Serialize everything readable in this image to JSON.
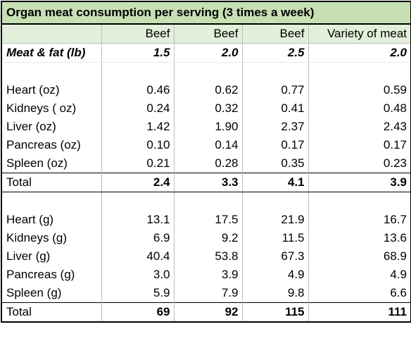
{
  "table": {
    "title": "Organ meat consumption per serving (3 times a week)",
    "columns": [
      "",
      "Beef",
      "Beef",
      "Beef",
      "Variety of meat"
    ],
    "meat_fat": {
      "label": "Meat & fat (lb)",
      "values": [
        "1.5",
        "2.0",
        "2.5",
        "2.0"
      ]
    },
    "oz_rows": [
      {
        "label": "Heart (oz)",
        "values": [
          "0.46",
          "0.62",
          "0.77",
          "0.59"
        ]
      },
      {
        "label": "Kidneys ( oz)",
        "values": [
          "0.24",
          "0.32",
          "0.41",
          "0.48"
        ]
      },
      {
        "label": "Liver (oz)",
        "values": [
          "1.42",
          "1.90",
          "2.37",
          "2.43"
        ]
      },
      {
        "label": "Pancreas (oz)",
        "values": [
          "0.10",
          "0.14",
          "0.17",
          "0.17"
        ]
      },
      {
        "label": "Spleen (oz)",
        "values": [
          "0.21",
          "0.28",
          "0.35",
          "0.23"
        ]
      }
    ],
    "oz_total": {
      "label": "Total",
      "values": [
        "2.4",
        "3.3",
        "4.1",
        "3.9"
      ]
    },
    "g_rows": [
      {
        "label": "Heart (g)",
        "values": [
          "13.1",
          "17.5",
          "21.9",
          "16.7"
        ]
      },
      {
        "label": "Kidneys (g)",
        "values": [
          "6.9",
          "9.2",
          "11.5",
          "13.6"
        ]
      },
      {
        "label": "Liver (g)",
        "values": [
          "40.4",
          "53.8",
          "67.3",
          "68.9"
        ]
      },
      {
        "label": "Pancreas (g)",
        "values": [
          "3.0",
          "3.9",
          "4.9",
          "4.9"
        ]
      },
      {
        "label": "Spleen (g)",
        "values": [
          "5.9",
          "7.9",
          "9.8",
          "6.6"
        ]
      }
    ],
    "g_total": {
      "label": "Total",
      "values": [
        "69",
        "92",
        "115",
        "111"
      ]
    }
  },
  "colors": {
    "title_background": "#c6e0b4",
    "header_background": "#e2efda",
    "gridline": "#bfbfbf",
    "border": "#000000"
  }
}
